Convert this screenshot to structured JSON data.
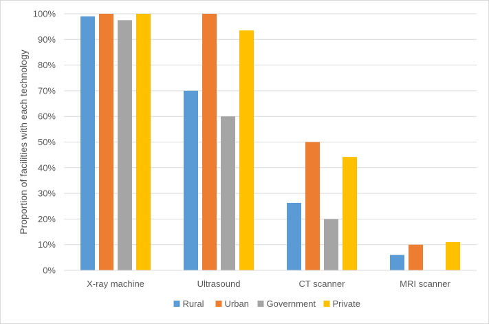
{
  "chart_data": {
    "type": "bar",
    "categories": [
      "X-ray machine",
      "Ultrasound",
      "CT scanner",
      "MRI scanner"
    ],
    "series": [
      {
        "name": "Rural",
        "values": [
          0.99,
          0.7,
          0.263,
          0.06
        ],
        "color": "#5b9bd5"
      },
      {
        "name": "Urban",
        "values": [
          1.0,
          1.0,
          0.5,
          0.1
        ],
        "color": "#ed7d31"
      },
      {
        "name": "Government",
        "values": [
          0.975,
          0.6,
          0.2,
          0.0
        ],
        "color": "#a5a5a5"
      },
      {
        "name": "Private",
        "values": [
          1.0,
          0.935,
          0.442,
          0.11
        ],
        "color": "#ffc000"
      }
    ],
    "ylabel": "Proportion of facilities with each technology",
    "ylim": [
      0,
      1
    ],
    "yticks": [
      "0%",
      "10%",
      "20%",
      "30%",
      "40%",
      "50%",
      "60%",
      "70%",
      "80%",
      "90%",
      "100%"
    ],
    "grid": true,
    "legend": "bottom"
  }
}
